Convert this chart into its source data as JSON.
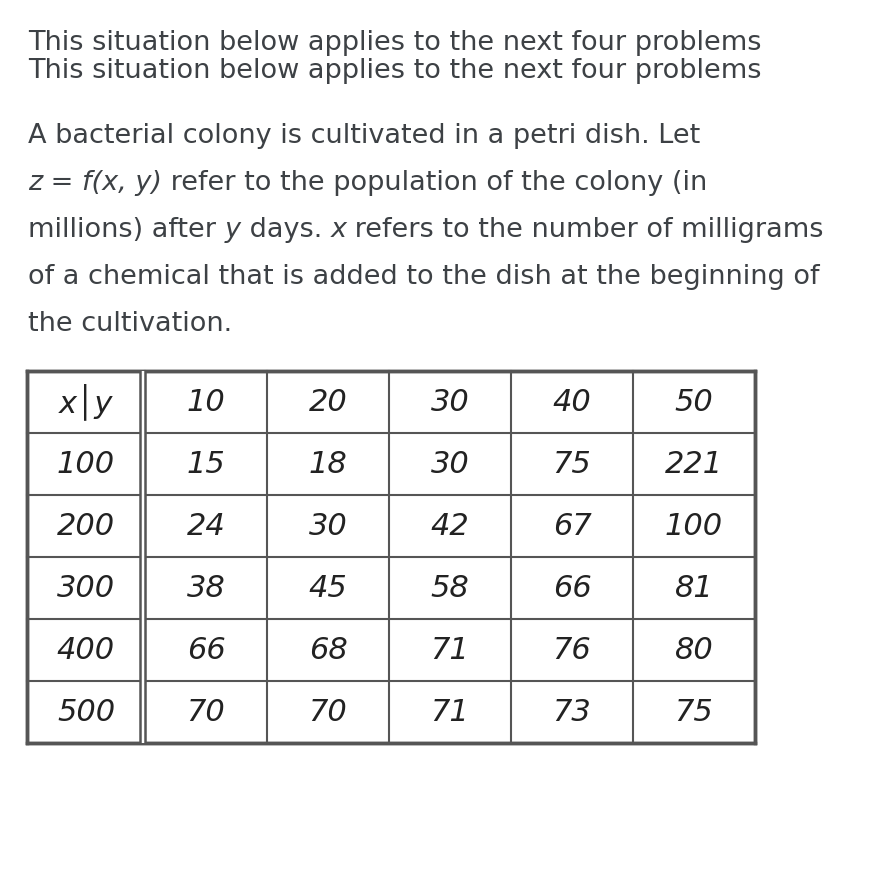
{
  "title": "This situation below applies to the next four problems",
  "para_line1": "A bacterial colony is cultivated in a petri dish. Let",
  "para_line2_parts": [
    [
      "z",
      true
    ],
    [
      " = ",
      false
    ],
    [
      "f(x, y)",
      true
    ],
    [
      " refer to the population of the colony (in",
      false
    ]
  ],
  "para_line3_parts": [
    [
      "millions) after ",
      false
    ],
    [
      "y",
      true
    ],
    [
      " days. ",
      false
    ],
    [
      "x",
      true
    ],
    [
      " refers to the number of milligrams",
      false
    ]
  ],
  "para_line4": "of a chemical that is added to the dish at the beginning of",
  "para_line5": "the cultivation.",
  "col_header": [
    "x│y",
    "10",
    "20",
    "30",
    "40",
    "50"
  ],
  "row_labels": [
    "100",
    "200",
    "300",
    "400",
    "500"
  ],
  "table_data": [
    [
      "15",
      "18",
      "30",
      "75",
      "221"
    ],
    [
      "24",
      "30",
      "42",
      "67",
      "100"
    ],
    [
      "38",
      "45",
      "58",
      "66",
      "81"
    ],
    [
      "66",
      "68",
      "71",
      "76",
      "80"
    ],
    [
      "70",
      "70",
      "71",
      "73",
      "75"
    ]
  ],
  "bg_color": "#ffffff",
  "text_color": "#3d4145",
  "table_border_color": "#555555",
  "font_size_title": 19.5,
  "font_size_para": 19.5,
  "font_size_table": 22
}
